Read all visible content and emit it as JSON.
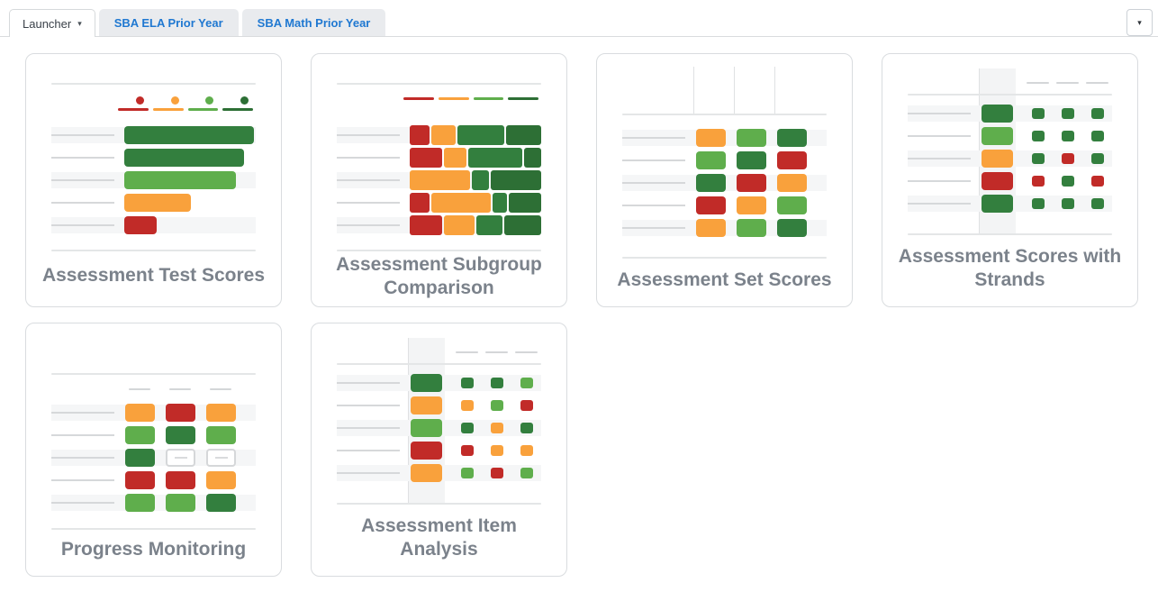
{
  "tabbar": {
    "launcher": {
      "label": "Launcher"
    },
    "tabs": [
      {
        "label": "SBA ELA Prior Year"
      },
      {
        "label": "SBA Math Prior Year"
      }
    ]
  },
  "icons": {
    "caret_down": "▾"
  },
  "palette": {
    "red": "#c12b28",
    "orange": "#f9a13c",
    "lightgreen": "#5fae4c",
    "green": "#337f3e",
    "darkgreen": "#2d6f35",
    "stripe": "#f5f6f7",
    "rule": "#e4e6e7",
    "tab_blue": "#1f78d1",
    "title_gray": "#7b828b"
  },
  "cards": [
    {
      "id": "assessment-test-scores",
      "title": "Assessment Test Scores",
      "thumbnail": {
        "type": "bars",
        "legend": {
          "dots": true,
          "colors": [
            "red",
            "orange",
            "lightgreen",
            "darkgreen"
          ]
        },
        "rows": [
          {
            "color": "green",
            "pct": 97
          },
          {
            "color": "green",
            "pct": 90
          },
          {
            "color": "lightgreen",
            "pct": 84
          },
          {
            "color": "orange",
            "pct": 50
          },
          {
            "color": "red",
            "pct": 24
          }
        ]
      }
    },
    {
      "id": "assessment-subgroup-comparison",
      "title": "Assessment Subgroup Comparison",
      "thumbnail": {
        "type": "stacked",
        "legend": {
          "dots": false,
          "colors": [
            "red",
            "orange",
            "lightgreen",
            "darkgreen"
          ]
        },
        "rows": [
          {
            "segments": [
              [
                "red",
                15
              ],
              [
                "orange",
                19
              ],
              [
                "green",
                36
              ],
              [
                "darkgreen",
                27
              ]
            ]
          },
          {
            "segments": [
              [
                "red",
                25
              ],
              [
                "orange",
                17
              ],
              [
                "green",
                41
              ],
              [
                "darkgreen",
                13
              ]
            ]
          },
          {
            "segments": [
              [
                "orange",
                46
              ],
              [
                "green",
                13
              ],
              [
                "darkgreen",
                38
              ]
            ]
          },
          {
            "segments": [
              [
                "red",
                15
              ],
              [
                "orange",
                45
              ],
              [
                "green",
                11
              ],
              [
                "darkgreen",
                25
              ]
            ]
          },
          {
            "segments": [
              [
                "red",
                25
              ],
              [
                "orange",
                23
              ],
              [
                "green",
                20
              ],
              [
                "darkgreen",
                28
              ]
            ]
          }
        ]
      }
    },
    {
      "id": "assessment-set-scores",
      "title": "Assessment Set Scores",
      "thumbnail": {
        "type": "grid",
        "ticks": true,
        "dashes": false,
        "rows": [
          [
            "orange",
            "lightgreen",
            "green"
          ],
          [
            "lightgreen",
            "green",
            "red"
          ],
          [
            "green",
            "red",
            "orange"
          ],
          [
            "red",
            "orange",
            "lightgreen"
          ],
          [
            "orange",
            "lightgreen",
            "green"
          ]
        ]
      }
    },
    {
      "id": "assessment-scores-with-strands",
      "title": "Assessment Scores with Strands",
      "thumbnail": {
        "type": "strands",
        "rows": [
          {
            "main": "green",
            "cells": [
              "green",
              "green",
              "green"
            ]
          },
          {
            "main": "lightgreen",
            "cells": [
              "green",
              "green",
              "green"
            ]
          },
          {
            "main": "orange",
            "cells": [
              "green",
              "red",
              "green"
            ]
          },
          {
            "main": "red",
            "cells": [
              "red",
              "green",
              "red"
            ]
          },
          {
            "main": "green",
            "cells": [
              "green",
              "green",
              "green"
            ]
          }
        ]
      }
    },
    {
      "id": "progress-monitoring",
      "title": "Progress Monitoring",
      "thumbnail": {
        "type": "grid",
        "ticks": false,
        "dashes": true,
        "rows": [
          [
            "orange",
            "red",
            "orange"
          ],
          [
            "lightgreen",
            "green",
            "lightgreen"
          ],
          [
            "green",
            "empty",
            "empty"
          ],
          [
            "red",
            "red",
            "orange"
          ],
          [
            "lightgreen",
            "lightgreen",
            "green"
          ]
        ]
      }
    },
    {
      "id": "assessment-item-analysis",
      "title": "Assessment Item Analysis",
      "thumbnail": {
        "type": "strands",
        "rows": [
          {
            "main": "green",
            "cells": [
              "green",
              "green",
              "lightgreen"
            ]
          },
          {
            "main": "orange",
            "cells": [
              "orange",
              "lightgreen",
              "red"
            ]
          },
          {
            "main": "lightgreen",
            "cells": [
              "green",
              "orange",
              "green"
            ]
          },
          {
            "main": "red",
            "cells": [
              "red",
              "orange",
              "orange"
            ]
          },
          {
            "main": "orange",
            "cells": [
              "lightgreen",
              "red",
              "lightgreen"
            ]
          }
        ]
      }
    }
  ]
}
